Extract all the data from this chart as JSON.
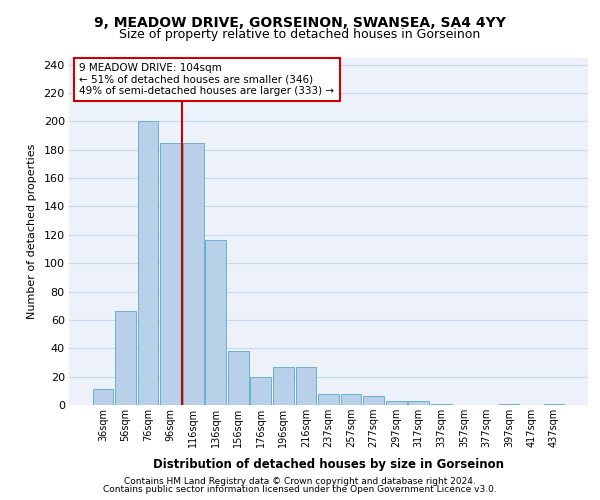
{
  "title1": "9, MEADOW DRIVE, GORSEINON, SWANSEA, SA4 4YY",
  "title2": "Size of property relative to detached houses in Gorseinon",
  "xlabel": "Distribution of detached houses by size in Gorseinon",
  "ylabel": "Number of detached properties",
  "bar_values": [
    11,
    66,
    200,
    185,
    185,
    116,
    38,
    20,
    27,
    27,
    8,
    8,
    6,
    3,
    3,
    1,
    0,
    0,
    1,
    0,
    1
  ],
  "bar_labels": [
    "36sqm",
    "56sqm",
    "76sqm",
    "96sqm",
    "116sqm",
    "136sqm",
    "156sqm",
    "176sqm",
    "196sqm",
    "216sqm",
    "237sqm",
    "257sqm",
    "277sqm",
    "297sqm",
    "317sqm",
    "337sqm",
    "357sqm",
    "377sqm",
    "397sqm",
    "417sqm",
    "437sqm"
  ],
  "bar_color": "#b8d0e8",
  "bar_edge_color": "#6baed6",
  "grid_color": "#c8d8ec",
  "vline_x": 3.5,
  "vline_color": "#cc0000",
  "annotation_text": "9 MEADOW DRIVE: 104sqm\n← 51% of detached houses are smaller (346)\n49% of semi-detached houses are larger (333) →",
  "annotation_box_color": "white",
  "annotation_box_edge": "#cc0000",
  "ylim": [
    0,
    245
  ],
  "yticks": [
    0,
    20,
    40,
    60,
    80,
    100,
    120,
    140,
    160,
    180,
    200,
    220,
    240
  ],
  "footer1": "Contains HM Land Registry data © Crown copyright and database right 2024.",
  "footer2": "Contains public sector information licensed under the Open Government Licence v3.0.",
  "bg_color": "#edf2fa"
}
